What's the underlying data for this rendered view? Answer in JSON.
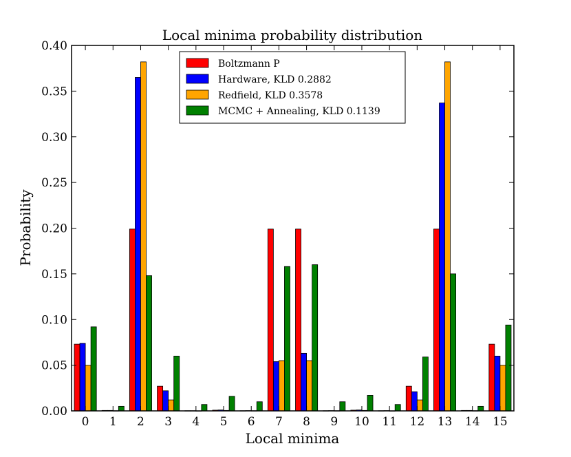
{
  "chart_data": {
    "type": "bar",
    "title": "Local minima probability distribution",
    "xlabel": "Local minima",
    "ylabel": "Probability",
    "ylim": [
      0,
      0.4
    ],
    "yticks": [
      "0.00",
      "0.05",
      "0.10",
      "0.15",
      "0.20",
      "0.25",
      "0.30",
      "0.35",
      "0.40"
    ],
    "categories": [
      "0",
      "1",
      "2",
      "3",
      "4",
      "5",
      "6",
      "7",
      "8",
      "9",
      "10",
      "11",
      "12",
      "13",
      "14",
      "15"
    ],
    "legend_position": "top-center",
    "series": [
      {
        "name": "Boltzmann P",
        "color": "#ff0000",
        "values": [
          0.073,
          0.0005,
          0.199,
          0.027,
          0.0002,
          0.0008,
          0.0002,
          0.199,
          0.199,
          0.0002,
          0.0008,
          0.0002,
          0.027,
          0.199,
          0.0005,
          0.073
        ]
      },
      {
        "name": "Hardware, KLD 0.2882",
        "color": "#0000ff",
        "values": [
          0.074,
          0.0005,
          0.365,
          0.022,
          0.0002,
          0.001,
          0.0003,
          0.054,
          0.063,
          0.0003,
          0.001,
          0.0003,
          0.021,
          0.337,
          0.0005,
          0.06
        ]
      },
      {
        "name": "Redfield, KLD 0.3578",
        "color": "#ffa500",
        "values": [
          0.05,
          0.0002,
          0.382,
          0.012,
          0.0001,
          0.0005,
          0.0002,
          0.055,
          0.055,
          0.0002,
          0.0005,
          0.0001,
          0.012,
          0.382,
          0.0002,
          0.05
        ]
      },
      {
        "name": "MCMC + Annealing, KLD 0.1139",
        "color": "#008000",
        "values": [
          0.092,
          0.005,
          0.148,
          0.06,
          0.007,
          0.016,
          0.01,
          0.158,
          0.16,
          0.01,
          0.017,
          0.007,
          0.059,
          0.15,
          0.005,
          0.094
        ]
      }
    ]
  }
}
